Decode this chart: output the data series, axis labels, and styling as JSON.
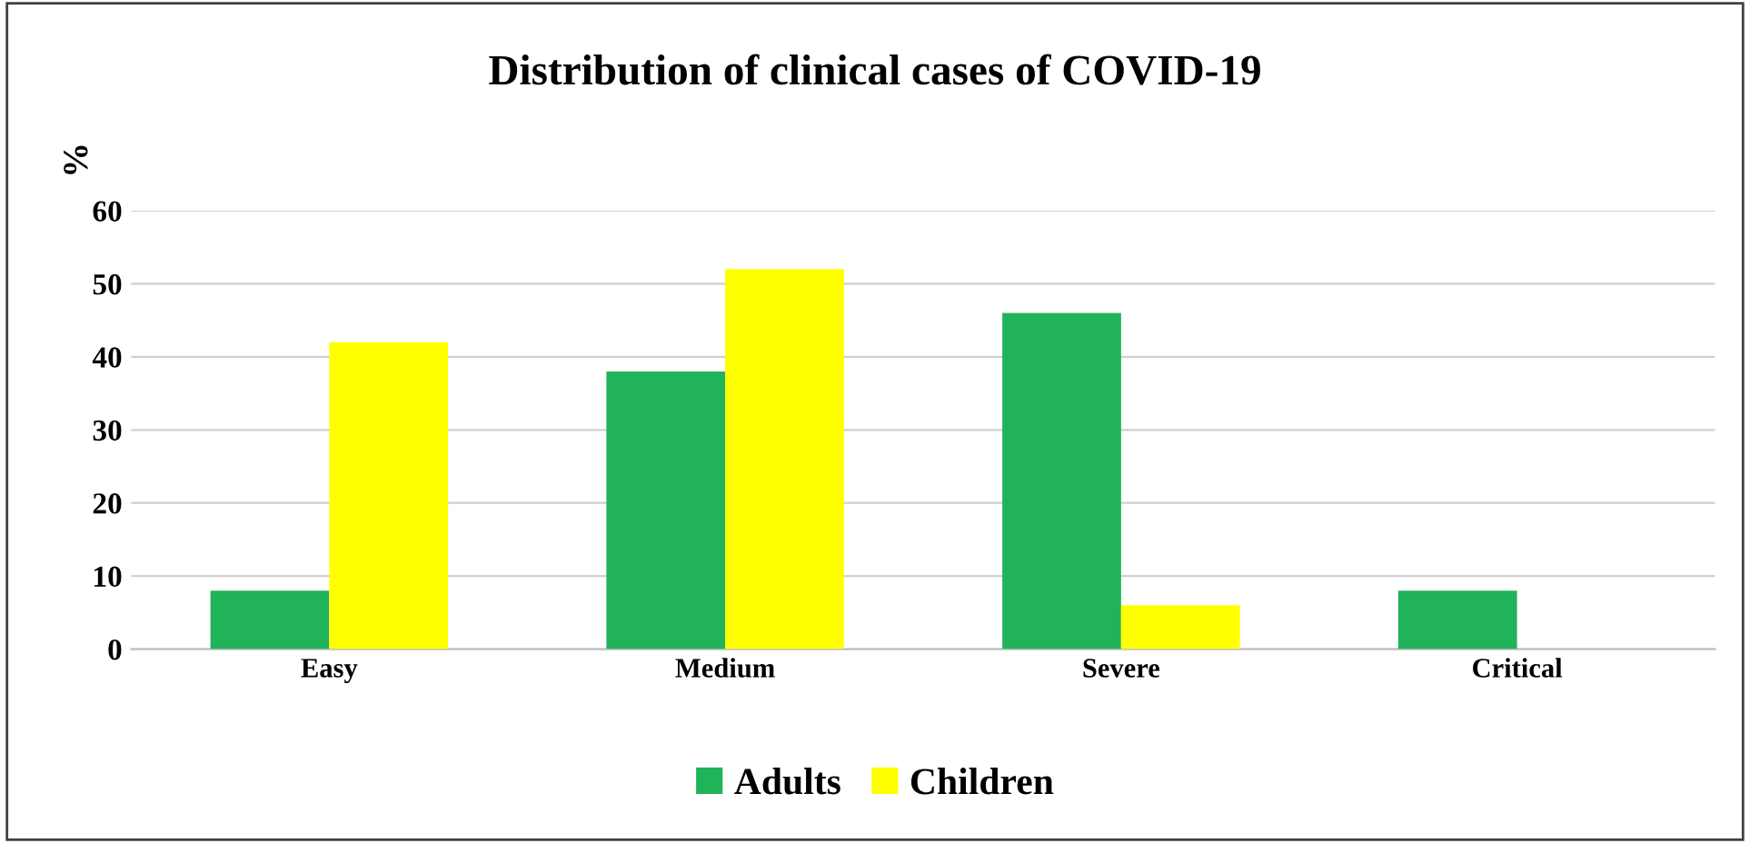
{
  "chart_data": {
    "type": "bar",
    "title": "Distribution of clinical cases of COVID-19",
    "ylabel": "%",
    "categories": [
      "Easy",
      "Medium",
      "Severe",
      "Critical"
    ],
    "series": [
      {
        "name": "Adults",
        "color": "#21b35a",
        "values": [
          8,
          38,
          46,
          8
        ]
      },
      {
        "name": "Children",
        "color": "#ffff00",
        "values": [
          42,
          52,
          6,
          0
        ]
      }
    ],
    "ylim": [
      0,
      60
    ],
    "yticks": [
      0,
      10,
      20,
      30,
      40,
      50,
      60
    ],
    "grid": "y",
    "legend": "bottom"
  }
}
